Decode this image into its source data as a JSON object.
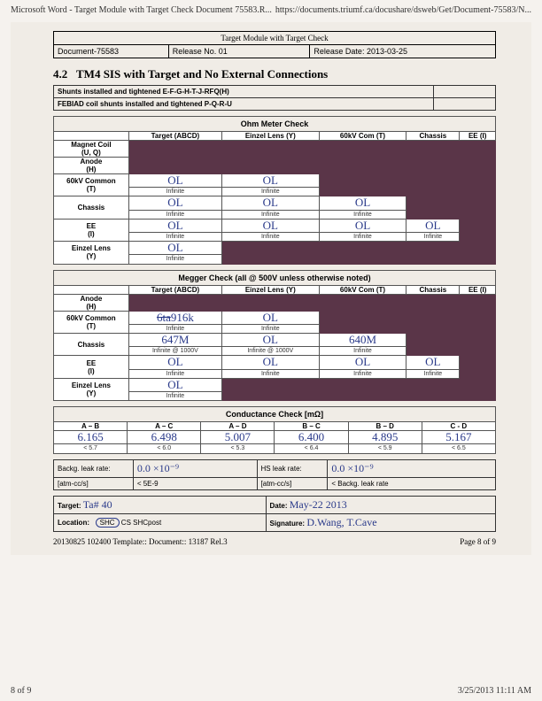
{
  "browser": {
    "left": "Microsoft Word - Target Module with Target Check Document 75583.R...",
    "right": "https://documents.triumf.ca/docushare/dsweb/Get/Document-75583/N..."
  },
  "header": {
    "title": "Target Module with Target Check",
    "docnum": "Document-75583",
    "release_no": "Release No. 01",
    "release_date": "Release Date: 2013-03-25"
  },
  "section": {
    "num": "4.2",
    "title": "TM4 SIS with Target and No External Connections"
  },
  "shunts": {
    "line1": "Shunts installed and tightened E-F-G-H-T-J-RFQ(H)",
    "line2": "FEBIAD coil shunts installed and tightened P-Q-R-U"
  },
  "ohm": {
    "title": "Ohm Meter Check",
    "cols": [
      "Target (ABCD)",
      "Einzel Lens (Y)",
      "60kV Com (T)",
      "Chassis",
      "EE (I)"
    ],
    "rows": [
      {
        "label": "Magnet Coil (U, Q)",
        "cells": [
          "dark",
          "dark",
          "dark",
          "dark",
          "dark"
        ]
      },
      {
        "label": "Anode (H)",
        "cells": [
          "dark",
          "dark",
          "dark",
          "dark",
          "dark"
        ]
      },
      {
        "label": "60kV Common (T)",
        "cells": [
          {
            "w": "OL",
            "e": "Infinite"
          },
          {
            "w": "OL",
            "e": "Infinite"
          },
          "dark",
          "dark",
          "dark"
        ]
      },
      {
        "label": "Chassis",
        "cells": [
          {
            "w": "OL",
            "e": "Infinite"
          },
          {
            "w": "OL",
            "e": "Infinite"
          },
          {
            "w": "OL",
            "e": "Infinite"
          },
          "dark",
          "dark"
        ]
      },
      {
        "label": "EE (I)",
        "cells": [
          {
            "w": "OL",
            "e": "Infinite"
          },
          {
            "w": "OL",
            "e": "Infinite"
          },
          {
            "w": "OL",
            "e": "Infinite"
          },
          {
            "w": "OL",
            "e": "Infinite"
          },
          "dark"
        ]
      },
      {
        "label": "Einzel Lens (Y)",
        "cells": [
          {
            "w": "OL",
            "e": "Infinite"
          },
          "dark",
          "dark",
          "dark",
          "dark"
        ]
      }
    ]
  },
  "megger": {
    "title": "Megger Check (all @ 500V unless otherwise noted)",
    "cols": [
      "Target (ABCD)",
      "Einzel Lens (Y)",
      "60kV Com (T)",
      "Chassis",
      "EE (I)"
    ],
    "rows": [
      {
        "label": "Anode (H)",
        "cells": [
          "dark",
          "dark",
          "dark",
          "dark",
          "dark"
        ]
      },
      {
        "label": "60kV Common (T)",
        "cells": [
          {
            "w": "<span class='strike'>6ta</span>916k",
            "e": "Infinite"
          },
          {
            "w": "OL",
            "e": "Infinite"
          },
          "dark",
          "dark",
          "dark"
        ]
      },
      {
        "label": "Chassis",
        "cells": [
          {
            "w": "647M",
            "e": "Infinite @ 1000V"
          },
          {
            "w": "OL",
            "e": "Infinite @ 1000V"
          },
          {
            "w": "640M",
            "e": "Infinite"
          },
          "dark",
          "dark"
        ]
      },
      {
        "label": "EE (I)",
        "cells": [
          {
            "w": "OL",
            "e": "Infinite"
          },
          {
            "w": "OL",
            "e": "Infinite"
          },
          {
            "w": "OL",
            "e": "Infinite"
          },
          {
            "w": "OL",
            "e": "Infinite"
          },
          "dark"
        ]
      },
      {
        "label": "Einzel Lens (Y)",
        "cells": [
          {
            "w": "OL",
            "e": "Infinite"
          },
          "dark",
          "dark",
          "dark",
          "dark"
        ]
      }
    ]
  },
  "conductance": {
    "title": "Conductance Check [mΩ]",
    "cols": [
      "A – B",
      "A – C",
      "A – D",
      "B – C",
      "B – D",
      "C - D"
    ],
    "vals": [
      {
        "w": "6.165",
        "e": "< 5.7"
      },
      {
        "w": "6.498",
        "e": "< 6.0"
      },
      {
        "w": "5.007",
        "e": "< 5.3"
      },
      {
        "w": "6.400",
        "e": "< 6.4"
      },
      {
        "w": "4.895",
        "e": "< 5.9"
      },
      {
        "w": "5.167",
        "e": "< 6.5"
      }
    ]
  },
  "leak": {
    "backg_label": "Backg. leak rate:",
    "backg_val": "0.0 ×10⁻⁹",
    "backg_unit": "[atm-cc/s]",
    "backg_exp": "< 5E-9",
    "hs_label": "HS leak rate:",
    "hs_val": "0.0 ×10⁻⁹",
    "hs_unit": "[atm-cc/s]",
    "hs_exp": "< Backg. leak rate"
  },
  "info": {
    "target_label": "Target:",
    "target_val": "Ta# 40",
    "date_label": "Date:",
    "date_val": "May-22  2013",
    "loc_label": "Location:",
    "loc_opts": [
      "SHC",
      "CS",
      "SHCpost"
    ],
    "sig_label": "Signature:",
    "sig_val": "D.Wang, T.Cave"
  },
  "footer": {
    "left": "20130825 102400 Template:: Document:: 13187 Rel.3",
    "right": "Page 8 of 9"
  },
  "bottom": {
    "left": "8 of 9",
    "right": "3/25/2013 11:11 AM"
  }
}
